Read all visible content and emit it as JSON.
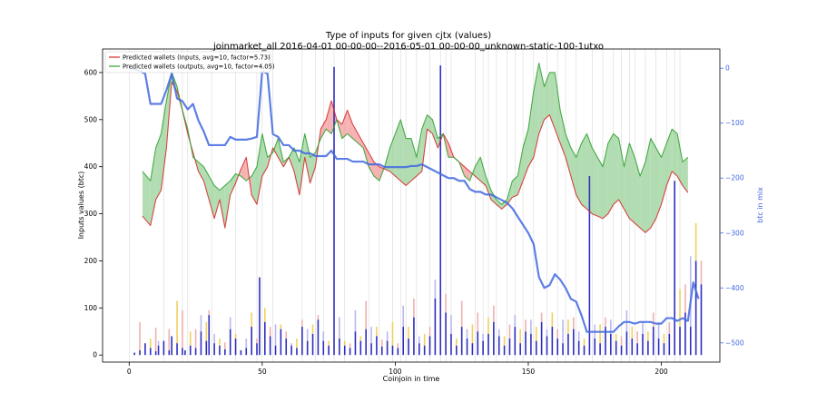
{
  "chart_data": {
    "type": "line",
    "title": "Type of inputs for given cjtx (values)",
    "subtitle": "joinmarket_all 2016-04-01 00-00-00--2016-05-01 00-00-00_unknown-static-100-1utxo",
    "xlabel": "Coinjoin in time",
    "ylabel": "Inputs values (btc)",
    "y2label": "btc in mix",
    "xlim": [
      -10,
      222
    ],
    "ylim": [
      -15,
      650
    ],
    "y2lim": [
      -535,
      35
    ],
    "xticks": [
      0,
      50,
      100,
      150,
      200
    ],
    "yticks": [
      0,
      100,
      200,
      300,
      400,
      500,
      600
    ],
    "y2ticks": [
      0,
      -100,
      -200,
      -300,
      -400,
      -500
    ],
    "legend_position": "top-left",
    "grid": "vertical lines at selected coinjoins",
    "colors": {
      "inputs": "#d62728",
      "outputs": "#2ca02c",
      "mix": "#4169e1",
      "fill_red": "#f4a0a0",
      "fill_green": "#9fd49f",
      "bars_main": "#2e2ebf",
      "bars_light": "#b8b8f0",
      "bars_yellow": "#f0d060",
      "bars_pink": "#f0b0b0"
    },
    "series": [
      {
        "name": "Predicted wallets (inputs, avg=10, factor=5.73)",
        "x": [
          5,
          8,
          10,
          12,
          14,
          16,
          18,
          20,
          22,
          24,
          26,
          28,
          30,
          32,
          34,
          36,
          38,
          40,
          42,
          44,
          46,
          48,
          50,
          52,
          54,
          56,
          58,
          60,
          62,
          64,
          66,
          68,
          70,
          72,
          74,
          76,
          78,
          80,
          82,
          84,
          86,
          88,
          90,
          92,
          94,
          96,
          98,
          100,
          102,
          104,
          106,
          108,
          110,
          112,
          114,
          116,
          118,
          120,
          122,
          124,
          126,
          128,
          130,
          132,
          134,
          136,
          138,
          140,
          142,
          144,
          146,
          148,
          150,
          152,
          154,
          156,
          158,
          160,
          162,
          164,
          166,
          168,
          170,
          172,
          174,
          176,
          178,
          180,
          182,
          184,
          186,
          188,
          190,
          192,
          194,
          196,
          198,
          200,
          202,
          204,
          206,
          208,
          210
        ],
        "values": [
          295,
          275,
          330,
          350,
          440,
          580,
          560,
          520,
          470,
          430,
          390,
          370,
          330,
          290,
          330,
          270,
          340,
          365,
          395,
          420,
          340,
          320,
          380,
          400,
          440,
          420,
          400,
          420,
          390,
          340,
          420,
          365,
          400,
          480,
          500,
          540,
          500,
          490,
          520,
          490,
          470,
          450,
          430,
          410,
          400,
          395,
          390,
          380,
          370,
          360,
          370,
          380,
          390,
          480,
          470,
          440,
          470,
          450,
          420,
          410,
          400,
          390,
          380,
          370,
          360,
          330,
          320,
          310,
          320,
          335,
          340,
          370,
          400,
          420,
          470,
          500,
          510,
          480,
          450,
          420,
          380,
          340,
          320,
          310,
          300,
          295,
          290,
          300,
          320,
          330,
          310,
          290,
          280,
          270,
          260,
          270,
          290,
          320,
          360,
          390,
          380,
          360,
          345
        ]
      },
      {
        "name": "Predicted wallets (outputs, avg=10, factor=4.05)",
        "x": [
          5,
          8,
          10,
          12,
          14,
          16,
          18,
          20,
          22,
          24,
          26,
          28,
          30,
          32,
          34,
          36,
          38,
          40,
          42,
          44,
          46,
          48,
          50,
          52,
          54,
          56,
          58,
          60,
          62,
          64,
          66,
          68,
          70,
          72,
          74,
          76,
          78,
          80,
          82,
          84,
          86,
          88,
          90,
          92,
          94,
          96,
          98,
          100,
          102,
          104,
          106,
          108,
          110,
          112,
          114,
          116,
          118,
          120,
          122,
          124,
          126,
          128,
          130,
          132,
          134,
          136,
          138,
          140,
          142,
          144,
          146,
          148,
          150,
          152,
          154,
          156,
          158,
          160,
          162,
          164,
          166,
          168,
          170,
          172,
          174,
          176,
          178,
          180,
          182,
          184,
          186,
          188,
          190,
          192,
          194,
          196,
          198,
          200,
          202,
          204,
          206,
          208,
          210
        ],
        "values": [
          390,
          370,
          440,
          470,
          540,
          600,
          570,
          520,
          480,
          420,
          410,
          400,
          380,
          360,
          350,
          360,
          370,
          385,
          380,
          370,
          380,
          400,
          470,
          420,
          430,
          460,
          410,
          420,
          440,
          410,
          470,
          420,
          430,
          460,
          480,
          470,
          500,
          460,
          470,
          460,
          450,
          440,
          400,
          380,
          370,
          400,
          440,
          470,
          500,
          460,
          460,
          420,
          480,
          510,
          500,
          460,
          470,
          420,
          420,
          410,
          380,
          370,
          400,
          420,
          380,
          350,
          330,
          320,
          330,
          370,
          380,
          440,
          480,
          560,
          620,
          570,
          600,
          600,
          520,
          470,
          440,
          420,
          450,
          470,
          440,
          420,
          400,
          450,
          470,
          460,
          400,
          450,
          420,
          380,
          410,
          460,
          440,
          420,
          450,
          480,
          470,
          410,
          420
        ]
      },
      {
        "name": "btc in mix",
        "axis": "right",
        "x": [
          0,
          2,
          4,
          6,
          8,
          10,
          12,
          14,
          16,
          18,
          20,
          22,
          24,
          26,
          28,
          30,
          32,
          34,
          36,
          38,
          40,
          42,
          44,
          46,
          48,
          50,
          52,
          54,
          56,
          58,
          60,
          62,
          64,
          66,
          68,
          70,
          72,
          74,
          76,
          78,
          80,
          82,
          84,
          86,
          88,
          90,
          92,
          94,
          96,
          98,
          100,
          102,
          104,
          106,
          108,
          110,
          112,
          114,
          116,
          118,
          120,
          122,
          124,
          126,
          128,
          130,
          132,
          134,
          136,
          138,
          140,
          142,
          144,
          146,
          148,
          150,
          152,
          154,
          156,
          158,
          160,
          162,
          164,
          166,
          168,
          170,
          172,
          174,
          176,
          178,
          180,
          182,
          184,
          186,
          188,
          190,
          192,
          194,
          196,
          198,
          200,
          202,
          204,
          206,
          208,
          210,
          212,
          214
        ],
        "values": [
          0,
          -2,
          -5,
          -10,
          -65,
          -65,
          -65,
          -40,
          -10,
          -55,
          -60,
          -75,
          -65,
          -95,
          -115,
          -140,
          -140,
          -140,
          -140,
          -125,
          -130,
          -130,
          -130,
          -128,
          -125,
          -5,
          -10,
          -120,
          -125,
          -140,
          -140,
          -150,
          -150,
          -155,
          -155,
          -160,
          -160,
          -160,
          -150,
          -165,
          -165,
          -165,
          -170,
          -170,
          -170,
          -175,
          -175,
          -175,
          -180,
          -180,
          -180,
          -180,
          -180,
          -178,
          -178,
          -175,
          -180,
          -185,
          -190,
          -195,
          -200,
          -200,
          -205,
          -205,
          -220,
          -225,
          -225,
          -230,
          -230,
          -235,
          -240,
          -245,
          -255,
          -270,
          -285,
          -300,
          -320,
          -380,
          -400,
          -395,
          -375,
          -385,
          -400,
          -420,
          -425,
          -450,
          -480,
          -480,
          -480,
          -480,
          -480,
          -480,
          -470,
          -462,
          -462,
          -465,
          -462,
          -462,
          -462,
          -465,
          -465,
          -455,
          -455,
          -460,
          -455,
          -460,
          -390,
          -420
        ]
      }
    ],
    "bars": {
      "x": [
        2,
        4,
        6,
        8,
        10,
        11,
        13,
        15,
        16,
        18,
        20,
        21,
        23,
        25,
        27,
        29,
        30,
        32,
        34,
        36,
        38,
        40,
        42,
        44,
        46,
        48,
        49,
        51,
        53,
        55,
        57,
        59,
        61,
        63,
        65,
        67,
        69,
        71,
        73,
        75,
        77,
        79,
        81,
        83,
        85,
        87,
        89,
        91,
        93,
        95,
        97,
        99,
        101,
        103,
        105,
        107,
        109,
        111,
        113,
        115,
        117,
        119,
        121,
        123,
        125,
        127,
        129,
        131,
        133,
        135,
        137,
        139,
        141,
        143,
        145,
        147,
        149,
        151,
        153,
        155,
        157,
        159,
        161,
        163,
        165,
        167,
        169,
        171,
        173,
        175,
        177,
        179,
        181,
        183,
        185,
        187,
        189,
        191,
        193,
        195,
        197,
        199,
        201,
        203,
        205,
        207,
        209,
        211,
        213,
        215
      ],
      "values": [
        5,
        10,
        25,
        15,
        8,
        20,
        30,
        10,
        40,
        25,
        15,
        10,
        20,
        15,
        50,
        30,
        85,
        25,
        20,
        12,
        55,
        35,
        10,
        15,
        60,
        25,
        165,
        70,
        40,
        20,
        55,
        35,
        20,
        15,
        60,
        30,
        45,
        75,
        30,
        20,
        612,
        35,
        20,
        15,
        50,
        30,
        55,
        25,
        40,
        18,
        30,
        20,
        15,
        60,
        35,
        80,
        25,
        20,
        40,
        120,
        615,
        90,
        45,
        20,
        60,
        35,
        25,
        50,
        30,
        45,
        70,
        40,
        20,
        35,
        60,
        25,
        50,
        45,
        30,
        70,
        40,
        60,
        35,
        25,
        45,
        55,
        30,
        20,
        380,
        35,
        25,
        60,
        45,
        30,
        20,
        50,
        35,
        25,
        45,
        30,
        60,
        35,
        25,
        45,
        370,
        60,
        90,
        60,
        200,
        150
      ],
      "extra_tops": [
        0,
        60,
        0,
        20,
        50,
        10,
        0,
        45,
        0,
        90,
        80,
        0,
        30,
        40,
        35,
        40,
        10,
        20,
        15,
        15,
        25,
        10,
        0,
        20,
        30,
        10,
        0,
        30,
        20,
        45,
        10,
        15,
        5,
        20,
        15,
        25,
        20,
        10,
        20,
        10,
        0,
        45,
        10,
        10,
        45,
        10,
        60,
        35,
        20,
        15,
        20,
        50,
        10,
        45,
        25,
        40,
        15,
        25,
        20,
        40,
        0,
        40,
        40,
        15,
        55,
        20,
        40,
        40,
        15,
        35,
        35,
        15,
        20,
        30,
        25,
        30,
        25,
        30,
        30,
        20,
        15,
        30,
        20,
        50,
        30,
        25,
        20,
        15,
        0,
        30,
        40,
        20,
        30,
        15,
        20,
        45,
        25,
        25,
        25,
        20,
        30,
        35,
        20,
        25,
        0,
        80,
        60,
        150,
        80,
        50
      ]
    },
    "vlines_x": [
      0,
      13,
      20,
      22,
      31,
      40,
      48,
      50,
      54,
      65,
      70,
      73,
      77,
      81,
      90,
      94,
      99,
      102,
      104,
      108,
      113,
      117,
      119,
      121,
      130,
      133,
      135,
      138,
      142,
      145,
      148,
      152,
      157,
      161,
      164,
      168,
      174,
      178,
      182,
      185,
      188,
      190,
      194,
      198,
      202,
      205,
      207
    ]
  }
}
